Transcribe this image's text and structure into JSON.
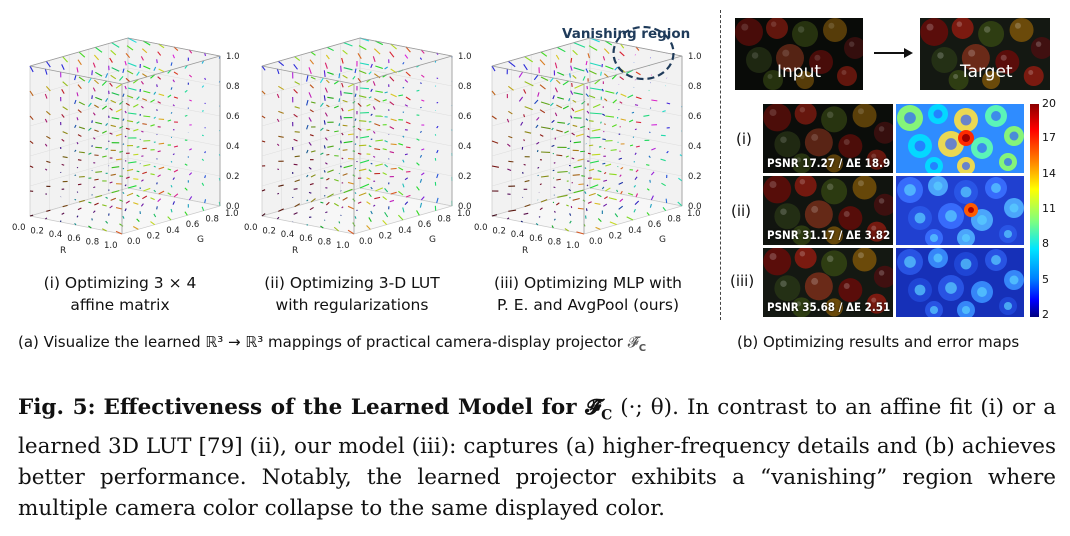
{
  "panel_a": {
    "plots": [
      {
        "caption_line1": "(i) Optimizing 3 × 4",
        "caption_line2": "affine matrix",
        "annotation": ""
      },
      {
        "caption_line1": "(ii) Optimizing 3-D LUT",
        "caption_line2": "with regularizations",
        "annotation": ""
      },
      {
        "caption_line1": "(iii) Optimizing MLP with",
        "caption_line2": "P. E. and AvgPool (ours)",
        "annotation": "Vanishing region"
      }
    ],
    "axis_labels": {
      "x": "R",
      "y": "G",
      "z": "B"
    },
    "ticks_b": [
      "0.0",
      "0.2",
      "0.4",
      "0.6",
      "0.8",
      "1.0"
    ],
    "ticks_r": [
      "0.0",
      "0.2",
      "0.4",
      "0.6",
      "0.8",
      "1.0"
    ],
    "ticks_g": [
      "0.0",
      "0.2",
      "0.4",
      "0.6",
      "0.8",
      "1.0"
    ],
    "subcaption_prefix": "(a) Visualize the learned ",
    "subcaption_math": "ℝ³ → ℝ³",
    "subcaption_suffix": " mappings of practical camera-display projector ",
    "subcaption_symbol": "𝓕̂",
    "subcaption_symbol_sub": "C"
  },
  "panel_b": {
    "input_label": "Input",
    "target_label": "Target",
    "rows": [
      {
        "label": "(i)",
        "psnr": "PSNR  17.27 / ΔE 18.9"
      },
      {
        "label": "(ii)",
        "psnr": "PSNR  31.17 / ΔE 3.82"
      },
      {
        "label": "(iii)",
        "psnr": "PSNR  35.68 / ΔE 2.51"
      }
    ],
    "colorbar_ticks": [
      "20",
      "17",
      "14",
      "11",
      "8",
      "5",
      "2"
    ],
    "subcaption": "(b) Optimizing results and error maps"
  },
  "figure_caption": {
    "label": "Fig. 5:",
    "title_bold": "Effectiveness of the Learned Model for ",
    "title_symbol": "𝓕̂",
    "title_symbol_sub": "C",
    "title_args": " (·; θ).",
    "body": "In contrast to an affine fit (i) or a learned 3D LUT [79] (ii), our model (iii): captures (a) higher-frequency details and (b) achieves better performance. Notably, the learned projector exhibits a “vanishing” region where multiple camera color collapse to the same displayed color."
  },
  "colors": {
    "colorbar_top": "#8b0000",
    "colorbar_bottom": "#00007f",
    "vanishing_ellipse": "#1f3b5a"
  }
}
